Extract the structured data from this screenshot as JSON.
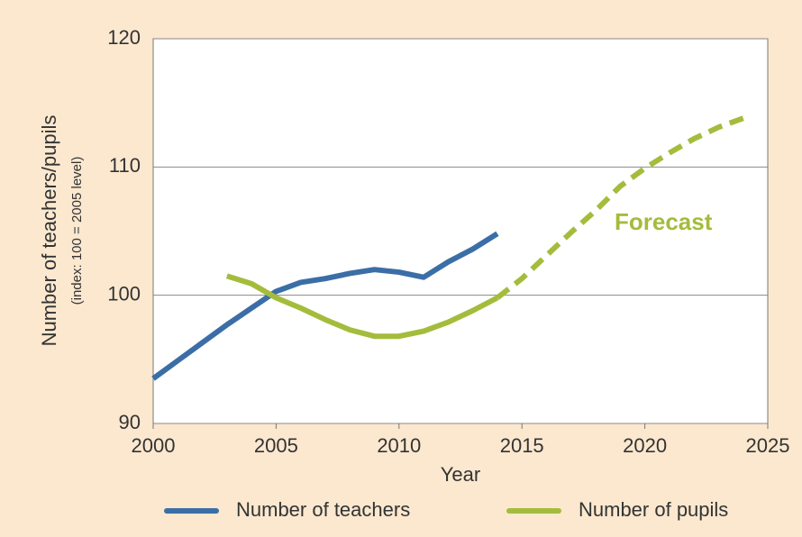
{
  "chart_data": {
    "type": "line",
    "ylabel": "Number of teachers/pupils",
    "ylabel_sub": "(index: 100 = 2005 level)",
    "xlabel": "Year",
    "xlim": [
      2000,
      2025
    ],
    "xticks": [
      2000,
      2005,
      2010,
      2015,
      2020,
      2025
    ],
    "ylim": [
      90,
      120
    ],
    "yticks": [
      90,
      100,
      110,
      120
    ],
    "grid": true,
    "forecast": {
      "label": "Forecast",
      "from_x": 2014
    },
    "series": [
      {
        "name": "Number of teachers",
        "color": "#3b6ea6",
        "x": [
          2000,
          2001,
          2002,
          2003,
          2004,
          2005,
          2006,
          2007,
          2008,
          2009,
          2010,
          2011,
          2012,
          2013,
          2014
        ],
        "values": [
          93.5,
          94.9,
          96.3,
          97.7,
          99.0,
          100.3,
          101.0,
          101.3,
          101.7,
          102.0,
          101.8,
          101.4,
          102.6,
          103.6,
          104.8
        ]
      },
      {
        "name": "Number of pupils",
        "color": "#a4bc3c",
        "x": [
          2003,
          2004,
          2005,
          2006,
          2007,
          2008,
          2009,
          2010,
          2011,
          2012,
          2013,
          2014,
          2015,
          2016,
          2017,
          2018,
          2019,
          2020,
          2021,
          2022,
          2023,
          2024
        ],
        "values": [
          101.5,
          100.9,
          99.8,
          99.0,
          98.1,
          97.3,
          96.8,
          96.8,
          97.2,
          97.9,
          98.8,
          99.8,
          101.3,
          103.1,
          104.9,
          106.6,
          108.5,
          109.9,
          111.1,
          112.2,
          113.1,
          113.8
        ]
      }
    ]
  }
}
